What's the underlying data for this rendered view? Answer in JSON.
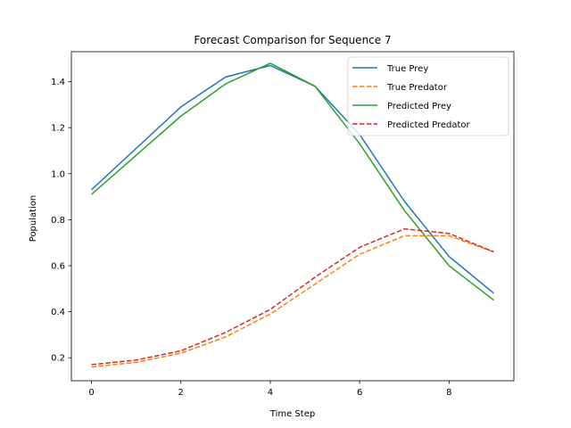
{
  "chart_data": {
    "type": "line",
    "title": "Forecast Comparison for Sequence 7",
    "xlabel": "Time Step",
    "ylabel": "Population",
    "x": [
      0,
      1,
      2,
      3,
      4,
      5,
      6,
      7,
      8,
      9
    ],
    "xlim": [
      -0.45,
      9.45
    ],
    "ylim": [
      0.1,
      1.53
    ],
    "xticks": [
      0,
      2,
      4,
      6,
      8
    ],
    "yticks": [
      0.2,
      0.4,
      0.6,
      0.8,
      1.0,
      1.2,
      1.4
    ],
    "ytick_labels": [
      "0.2",
      "0.4",
      "0.6",
      "0.8",
      "1.0",
      "1.2",
      "1.4"
    ],
    "grid": false,
    "legend_position": "top-right",
    "series": [
      {
        "name": "True Prey",
        "color": "#1f77b4",
        "dash": "solid",
        "values": [
          0.93,
          1.11,
          1.29,
          1.42,
          1.47,
          1.38,
          1.17,
          0.88,
          0.64,
          0.48
        ]
      },
      {
        "name": "True Predator",
        "color": "#ff7f0e",
        "dash": "dashed",
        "values": [
          0.16,
          0.18,
          0.22,
          0.29,
          0.39,
          0.52,
          0.65,
          0.73,
          0.73,
          0.66
        ]
      },
      {
        "name": "Predicted Prey",
        "color": "#2ca02c",
        "dash": "solid",
        "values": [
          0.91,
          1.08,
          1.25,
          1.39,
          1.48,
          1.38,
          1.13,
          0.84,
          0.6,
          0.45
        ]
      },
      {
        "name": "Predicted Predator",
        "color": "#d62728",
        "dash": "dashed",
        "values": [
          0.17,
          0.19,
          0.23,
          0.31,
          0.41,
          0.55,
          0.68,
          0.76,
          0.74,
          0.66
        ]
      }
    ]
  }
}
